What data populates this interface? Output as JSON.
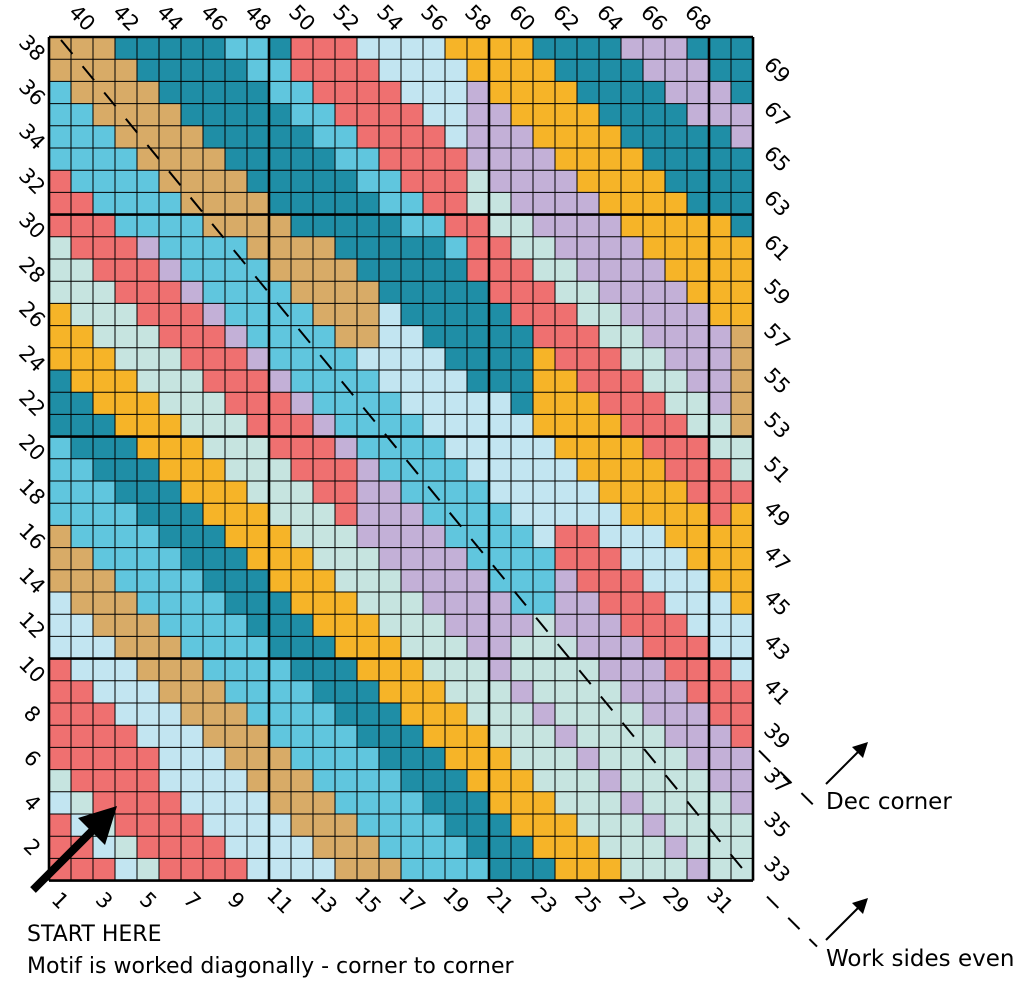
{
  "palette": {
    "A": "#d8ab67",
    "B": "#1f8ea6",
    "C": "#60c6de",
    "D": "#ef7070",
    "E": "#c2e5f1",
    "F": "#f6b428",
    "G": "#c3b0d7",
    "H": "#c6e4e0"
  },
  "grid": {
    "columns": 32,
    "rows": 38,
    "major_every": 10,
    "cells": [
      "AAABBBBBCCBDDDEEEEFFFFBBBBGGGBBB",
      "AAAABBBBBCCDDDDEEEEFFFFBBBBGGGBB",
      "CAAAABBBBBCCDDDDEEEGFFFFBBBBGGGB",
      "CCAAAABBBBBCCDDDDEEGGFFFFBBBBGGG",
      "CCCAAAABBBBBCCDDDDEGGGFFFFBBBBBG",
      "CCCCAAAABBBBBCCDDDDGGGGFFFFBBBBB",
      "DCCCCAAAABBBBBCCDDDHGGGGFFFFBBBB",
      "DDCCCCAAAABBBBBCCDDHHGGGGFFFFBBB",
      "DDDCCCCAAAABBBBBCCDDHHGGGGFFFFFB",
      "HDDDGCCCCAAAABBBBBCDDHHGGGGFFFFF",
      "HHDDDGCCCCAAAABBBBBDDDHHGGGGFFFF",
      "HHHDDDGCCCCAAAABBBBBDDDHHGGGGFFF",
      "FHHHDDDGCCCCAAAEBBBBBDDDHHGGGGFF",
      "FFHHHDDDGCCCCAAEEBBBBBDDDHHGGGGA",
      "FFFHHHDDDGCCCCEEEEBBBBFDDDHHGGGA",
      "BFFFHHHDDDGCCCCEEEEBBBFFDDDHHGGA",
      "BBFFFHHHDDDGCCCCEEEEEBFFFDDDHHGA",
      "BBBFFFHHHDDDGCCCCEEEEEFFFFDDDHHA",
      "CBBBFFFHHHDDDGCCCCEEEEEFFFFDDDHH",
      "CCBBBFFFHHHDDDGCCCCEEEEEFFFFDDDH",
      "CCCBBBFFFHHHDDGGCCCCEEEEEFFFFDDD",
      "CCCCBBBFFFHHHDGGGCCCCEEEEEFFFFDF",
      "ACCCCBBBFFFHHHGGGGCCCCEDDEEEFFFF",
      "AACCCCBBBFFFHHHGGGGCCCCDDDEEEFFF",
      "AAACCCCBBBFFFHHHGGGGCCCGDDDEEEFF",
      "EAAACCCCBBBFFFHHHGGGGCCGGDDDEEEF",
      "EEAAACCCCBBBFFFHHHGGGGHGGGDDDEEE",
      "EEEAAACCCCBBBFFFHHHGGHHHGGGDDDEE",
      "DEEEAAACCCCBBBFFFHHHGHHHHGGGDDDE",
      "DDEEEAAACCCCBBBFFFHHHGHHHHGGGDDD",
      "DDDEEEAAACCCCBBBFFFHHHGHHHHGGGDD",
      "DDDDEEEAAACCCCBBBFFFHHHGHHHHGGGD",
      "DDDDDEEEAAACCCCBBBFFFHHHGHHHHGGG",
      "HDDDDEEEEAAACCCCBBBFFFHHHGHHHHGG",
      "EHDDDDEEEEAAACCCCBBBFFFHHHGHHHHG",
      "DEHDDDDEEEEAAACCCCBBBFFFHHHGHHHH",
      "DDEHDDDDEEEEAAACCCCBBBFFFHHHGHHH",
      "DDDEHDDDDEEEEAAACCCCBBBFFFHHHGHH"
    ]
  },
  "row_labels_left": [
    "2",
    "4",
    "6",
    "8",
    "10",
    "12",
    "14",
    "16",
    "18",
    "20",
    "22",
    "24",
    "26",
    "28",
    "30",
    "32",
    "34",
    "36",
    "38"
  ],
  "row_labels_right": [
    "33",
    "35",
    "37",
    "39",
    "41",
    "43",
    "45",
    "47",
    "49",
    "51",
    "53",
    "55",
    "57",
    "59",
    "61",
    "63",
    "65",
    "67",
    "69"
  ],
  "col_labels_bottom": [
    "1",
    "3",
    "5",
    "7",
    "9",
    "11",
    "13",
    "15",
    "17",
    "19",
    "21",
    "23",
    "25",
    "27",
    "29",
    "31"
  ],
  "col_labels_top": [
    "40",
    "42",
    "44",
    "46",
    "48",
    "50",
    "52",
    "54",
    "56",
    "58",
    "60",
    "62",
    "64",
    "66",
    "68"
  ],
  "start_here": "START HERE",
  "motif_note": "Motif is worked diagonally - corner to corner",
  "dec_corner": "Dec corner",
  "work_sides": "Work sides even"
}
